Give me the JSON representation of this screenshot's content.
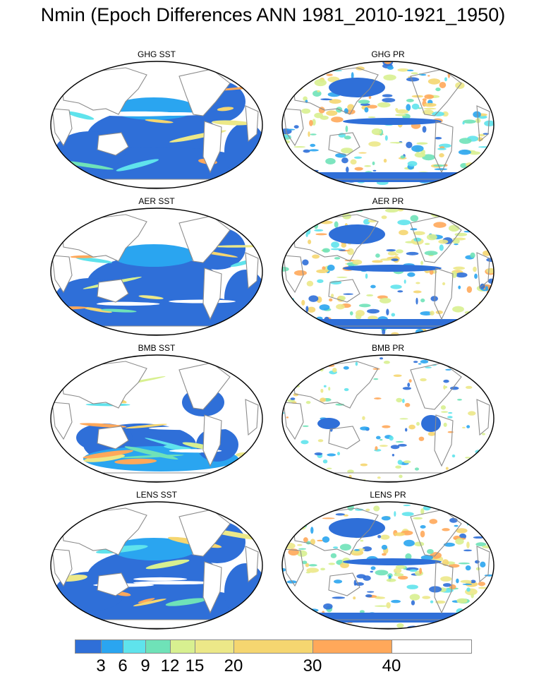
{
  "title": "Nmin (Epoch Differences ANN 1981_2010-1921_1950)",
  "panels": [
    {
      "label": "GHG SST",
      "variable": "SST",
      "forcing": "GHG",
      "pattern": "sst_strong"
    },
    {
      "label": "GHG PR",
      "variable": "PR",
      "forcing": "GHG",
      "pattern": "pr_medium"
    },
    {
      "label": "AER SST",
      "variable": "SST",
      "forcing": "AER",
      "pattern": "sst_strong"
    },
    {
      "label": "AER PR",
      "variable": "PR",
      "forcing": "AER",
      "pattern": "pr_medium"
    },
    {
      "label": "BMB SST",
      "variable": "SST",
      "forcing": "BMB",
      "pattern": "sst_weak"
    },
    {
      "label": "BMB PR",
      "variable": "PR",
      "forcing": "BMB",
      "pattern": "pr_weak"
    },
    {
      "label": "LENS SST",
      "variable": "SST",
      "forcing": "LENS",
      "pattern": "sst_strong"
    },
    {
      "label": "LENS PR",
      "variable": "PR",
      "forcing": "LENS",
      "pattern": "pr_medium"
    }
  ],
  "colorbar": {
    "colors": [
      "#2f6fd8",
      "#2aa5f0",
      "#5fe3ec",
      "#6fe2b8",
      "#d8f090",
      "#ece888",
      "#f5d670",
      "#ffa85a",
      "#ffffff"
    ],
    "levels": [
      3,
      6,
      9,
      12,
      15,
      20,
      30,
      40
    ],
    "labels": [
      "3",
      "6",
      "9",
      "12",
      "15",
      "20",
      "30",
      "40"
    ]
  },
  "map": {
    "projection": "Robinson-like ellipse",
    "center": "Pacific",
    "land_color": "#ffffff",
    "coastline_color": "#8c8c8c"
  }
}
